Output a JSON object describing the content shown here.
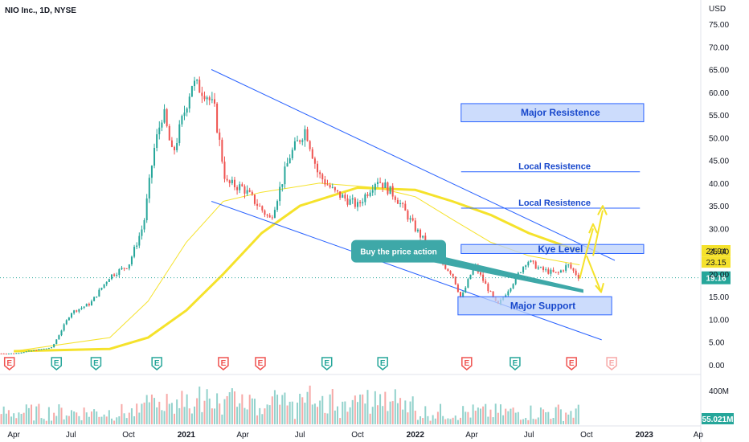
{
  "header": {
    "symbol_title": "NIO Inc., 1D, NYSE",
    "currency": "USD"
  },
  "colors": {
    "up": "#26a69a",
    "down": "#ef5350",
    "channel": "#2962ff",
    "ma": "#f5e22b",
    "zone_fill": "#bbd0fb",
    "zone_border": "#2962ff",
    "callout": "#3ea8a8",
    "last_price": "#26a69a"
  },
  "chart_data": {
    "type": "candlestick",
    "title": "NIO Inc., 1D, NYSE",
    "ylabel": "USD",
    "ylim": [
      0,
      75
    ],
    "y_ticks": [
      "75.00",
      "70.00",
      "65.00",
      "60.00",
      "55.00",
      "50.00",
      "45.00",
      "40.00",
      "35.00",
      "30.00",
      "25.00",
      "20.00",
      "15.00",
      "10.00",
      "5.00",
      "0.00"
    ],
    "x_ticks": [
      "Apr",
      "Jul",
      "Oct",
      "2021",
      "Apr",
      "Jul",
      "Oct",
      "2022",
      "Apr",
      "Jul",
      "Oct",
      "2023",
      "Ap"
    ],
    "x_ticks_bold": [
      "2021",
      "2022",
      "2023"
    ],
    "price_path": [
      {
        "t": "2020-04-01",
        "p": 2.5
      },
      {
        "t": "2020-06-01",
        "p": 3.8
      },
      {
        "t": "2020-07-01",
        "p": 11.5
      },
      {
        "t": "2020-08-01",
        "p": 13.5
      },
      {
        "t": "2020-09-01",
        "p": 19.5
      },
      {
        "t": "2020-10-01",
        "p": 22.0
      },
      {
        "t": "2020-10-25",
        "p": 31.0
      },
      {
        "t": "2020-11-10",
        "p": 47.0
      },
      {
        "t": "2020-11-25",
        "p": 56.0
      },
      {
        "t": "2020-12-10",
        "p": 46.0
      },
      {
        "t": "2021-01-10",
        "p": 62.0
      },
      {
        "t": "2021-02-01",
        "p": 60.0
      },
      {
        "t": "2021-02-15",
        "p": 56.0
      },
      {
        "t": "2021-03-05",
        "p": 40.0
      },
      {
        "t": "2021-04-01",
        "p": 39.0
      },
      {
        "t": "2021-05-15",
        "p": 32.0
      },
      {
        "t": "2021-06-15",
        "p": 46.0
      },
      {
        "t": "2021-07-10",
        "p": 52.0
      },
      {
        "t": "2021-07-30",
        "p": 42.0
      },
      {
        "t": "2021-08-25",
        "p": 38.0
      },
      {
        "t": "2021-10-01",
        "p": 35.0
      },
      {
        "t": "2021-11-01",
        "p": 41.0
      },
      {
        "t": "2021-12-01",
        "p": 37.0
      },
      {
        "t": "2022-01-01",
        "p": 30.0
      },
      {
        "t": "2022-02-01",
        "p": 24.0
      },
      {
        "t": "2022-03-01",
        "p": 20.0
      },
      {
        "t": "2022-03-15",
        "p": 14.5
      },
      {
        "t": "2022-04-05",
        "p": 22.0
      },
      {
        "t": "2022-05-12",
        "p": 13.0
      },
      {
        "t": "2022-06-05",
        "p": 18.0
      },
      {
        "t": "2022-06-28",
        "p": 23.0
      },
      {
        "t": "2022-07-20",
        "p": 21.0
      },
      {
        "t": "2022-08-15",
        "p": 20.0
      },
      {
        "t": "2022-09-01",
        "p": 22.0
      },
      {
        "t": "2022-09-20",
        "p": 19.16
      }
    ],
    "ma_fast": [
      {
        "t": "2020-04-01",
        "p": 3
      },
      {
        "t": "2020-09-01",
        "p": 6
      },
      {
        "t": "2020-11-01",
        "p": 14
      },
      {
        "t": "2021-01-01",
        "p": 27
      },
      {
        "t": "2021-03-01",
        "p": 36
      },
      {
        "t": "2021-05-01",
        "p": 38
      },
      {
        "t": "2021-08-01",
        "p": 40
      },
      {
        "t": "2021-11-01",
        "p": 39
      },
      {
        "t": "2022-01-01",
        "p": 37
      },
      {
        "t": "2022-03-01",
        "p": 32
      },
      {
        "t": "2022-05-01",
        "p": 27
      },
      {
        "t": "2022-07-01",
        "p": 24
      },
      {
        "t": "2022-09-20",
        "p": 22
      }
    ],
    "ma_slow": [
      {
        "t": "2020-04-01",
        "p": 3
      },
      {
        "t": "2020-09-01",
        "p": 3.5
      },
      {
        "t": "2020-11-01",
        "p": 6
      },
      {
        "t": "2021-01-01",
        "p": 12
      },
      {
        "t": "2021-03-01",
        "p": 20
      },
      {
        "t": "2021-05-01",
        "p": 29
      },
      {
        "t": "2021-07-01",
        "p": 35
      },
      {
        "t": "2021-10-01",
        "p": 39
      },
      {
        "t": "2022-01-01",
        "p": 38.5
      },
      {
        "t": "2022-03-01",
        "p": 36
      },
      {
        "t": "2022-05-01",
        "p": 33
      },
      {
        "t": "2022-07-01",
        "p": 29
      },
      {
        "t": "2022-09-20",
        "p": 25
      }
    ],
    "channel_upper": [
      {
        "t": "2021-02-10",
        "p": 65
      },
      {
        "t": "2022-11-15",
        "p": 23
      }
    ],
    "channel_lower": [
      {
        "t": "2021-02-10",
        "p": 36
      },
      {
        "t": "2022-10-25",
        "p": 5.5
      }
    ],
    "zones": [
      {
        "name": "major_resistance",
        "label": "Major Resistence",
        "t0": "2022-03-15",
        "t1": "2022-12-31",
        "p_top": 57.5,
        "p_bottom": 53.5
      },
      {
        "name": "key_level",
        "label": "Kye Level",
        "t0": "2022-03-15",
        "t1": "2022-12-31",
        "p_top": 26.5,
        "p_bottom": 24.5
      },
      {
        "name": "major_support",
        "label": "Major Support",
        "t0": "2022-03-10",
        "t1": "2022-11-10",
        "p_top": 15.0,
        "p_bottom": 11.0
      }
    ],
    "levels": [
      {
        "name": "local_resistance_upper",
        "label": "Local Resistence",
        "t0": "2022-03-15",
        "t1": "2022-12-25",
        "p": 42.5
      },
      {
        "name": "local_resistance_lower",
        "label": "Local Resistence",
        "t0": "2022-03-15",
        "t1": "2022-12-25",
        "p": 34.5
      }
    ],
    "callout": {
      "label": "Buy the price action",
      "p": 25
    },
    "wedge": {
      "upper": [
        {
          "t": "2022-01-20",
          "p": 24.5
        },
        {
          "t": "2022-09-25",
          "p": 16.5
        }
      ],
      "lower": [
        {
          "t": "2022-01-20",
          "p": 23.0
        },
        {
          "t": "2022-09-25",
          "p": 16.0
        }
      ]
    },
    "current_price": {
      "value": "19.16",
      "p": 19.16
    },
    "price_markers": [
      {
        "value": "24.94",
        "p": 24.94,
        "color": "#f5e22b"
      },
      {
        "value": "23.15",
        "p": 23.15,
        "color": "#f5e22b"
      }
    ],
    "events": [
      {
        "t": "2020-03-25",
        "type": "E",
        "kind": "dividend-red"
      },
      {
        "t": "2020-06-08",
        "type": "E",
        "kind": "earnings-green"
      },
      {
        "t": "2020-08-10",
        "type": "E",
        "kind": "earnings-green"
      },
      {
        "t": "2020-11-15",
        "type": "E",
        "kind": "earnings-green"
      },
      {
        "t": "2021-03-01",
        "type": "E",
        "kind": "earnings-red"
      },
      {
        "t": "2021-04-29",
        "type": "E",
        "kind": "earnings-red"
      },
      {
        "t": "2021-08-13",
        "type": "E",
        "kind": "earnings-green"
      },
      {
        "t": "2021-11-10",
        "type": "E",
        "kind": "earnings-green"
      },
      {
        "t": "2022-03-24",
        "type": "E",
        "kind": "earnings-red"
      },
      {
        "t": "2022-06-09",
        "type": "E",
        "kind": "earnings-green"
      },
      {
        "t": "2022-09-07",
        "type": "E",
        "kind": "earnings-red"
      },
      {
        "t": "2022-11-10",
        "type": "E",
        "kind": "earnings-future"
      }
    ],
    "volume": {
      "label": "400M",
      "current": "55.021M"
    }
  }
}
